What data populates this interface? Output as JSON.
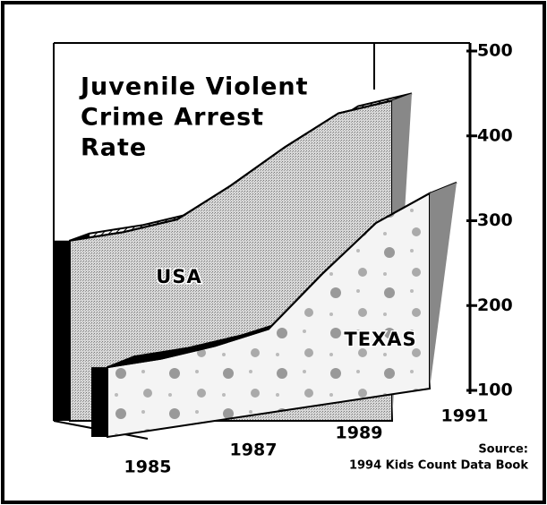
{
  "chart_data": {
    "type": "area3d",
    "title": [
      "Juvenile Violent",
      "Crime Arrest",
      "Rate"
    ],
    "source": [
      "Source:",
      "1994 Kids Count Data Book"
    ],
    "categories": [
      "1985",
      null,
      "1987",
      null,
      "1989",
      null,
      "1991"
    ],
    "series": [
      {
        "name": "USA",
        "color": "#c4c4c4",
        "values": [
          285,
          295,
          310,
          350,
          395,
          435,
          450
        ]
      },
      {
        "name": "TEXAS",
        "color": "#f2f2f2",
        "values": [
          140,
          150,
          165,
          185,
          250,
          310,
          345
        ]
      }
    ],
    "ylim": [
      100,
      500
    ],
    "yticks": [
      100,
      200,
      300,
      400,
      500
    ]
  }
}
